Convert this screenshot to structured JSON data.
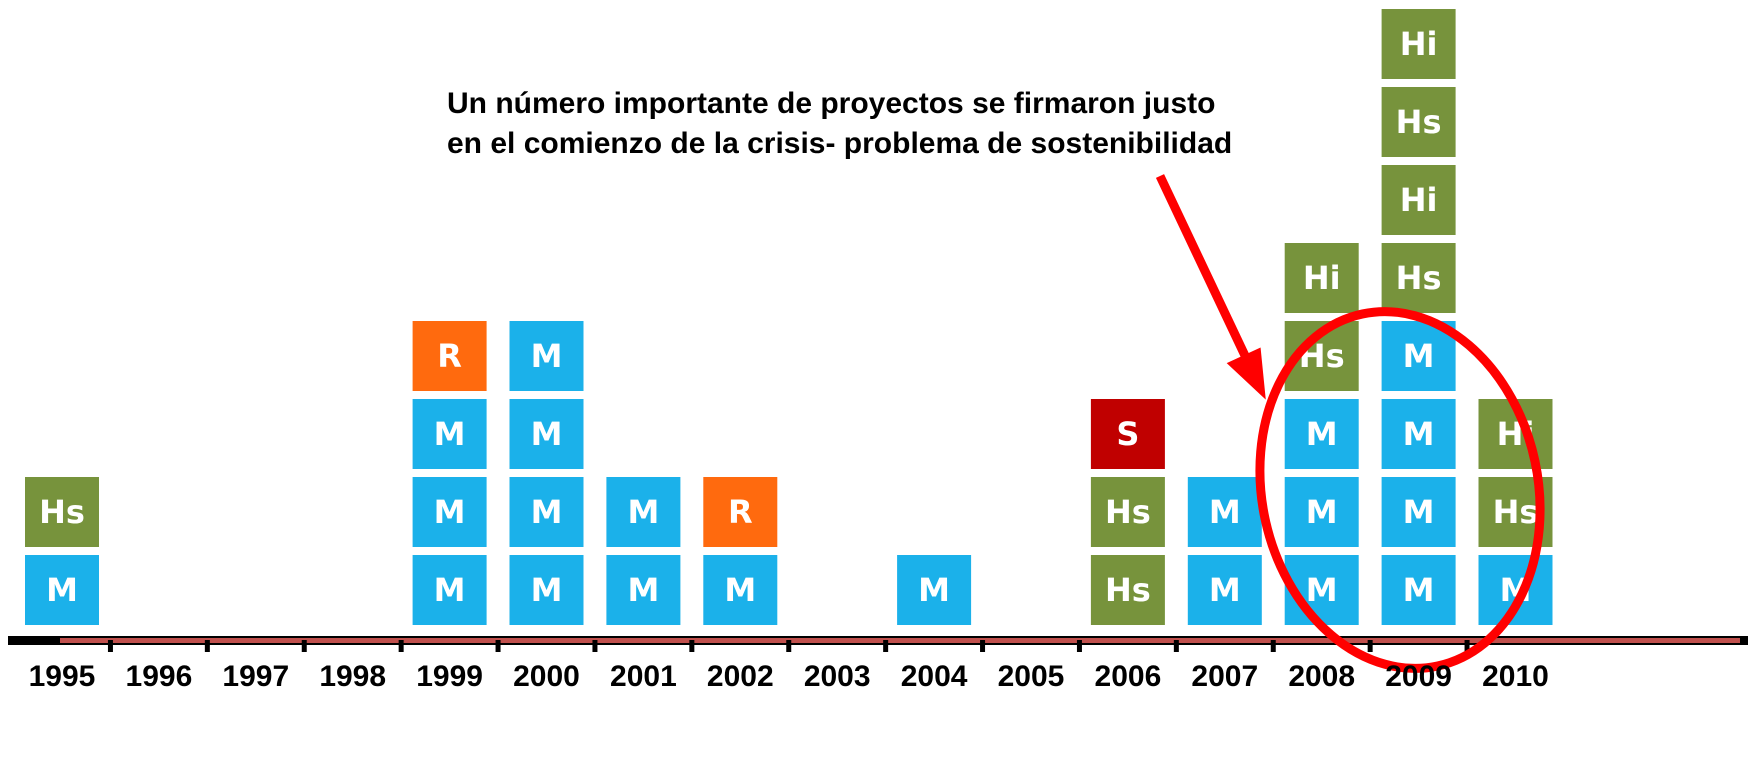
{
  "annotation": [
    "Un número importante de proyectos se firmaron justo",
    "en el comienzo de la crisis- problema de sostenibilidad"
  ],
  "box_colors": {
    "M": "#1bb1ea",
    "Hs": "#77933c",
    "Hi": "#77933c",
    "R": "#ff6a0e",
    "S": "#c00000"
  },
  "years": [
    "1995",
    "1996",
    "1997",
    "1998",
    "1999",
    "2000",
    "2001",
    "2002",
    "2003",
    "2004",
    "2005",
    "2006",
    "2007",
    "2008",
    "2009",
    "2010"
  ],
  "columns": [
    [
      "M",
      "Hs"
    ],
    [],
    [],
    [],
    [
      "M",
      "M",
      "M",
      "R"
    ],
    [
      "M",
      "M",
      "M",
      "M"
    ],
    [
      "M",
      "M"
    ],
    [
      "M",
      "R"
    ],
    [],
    [
      "M"
    ],
    [],
    [
      "Hs",
      "Hs",
      "S"
    ],
    [
      "M",
      "M"
    ],
    [
      "M",
      "M",
      "M",
      "Hs",
      "Hi"
    ],
    [
      "M",
      "M",
      "M",
      "M",
      "Hs",
      "Hi",
      "Hs",
      "Hi"
    ],
    [
      "M",
      "Hs",
      "Hi"
    ]
  ]
}
